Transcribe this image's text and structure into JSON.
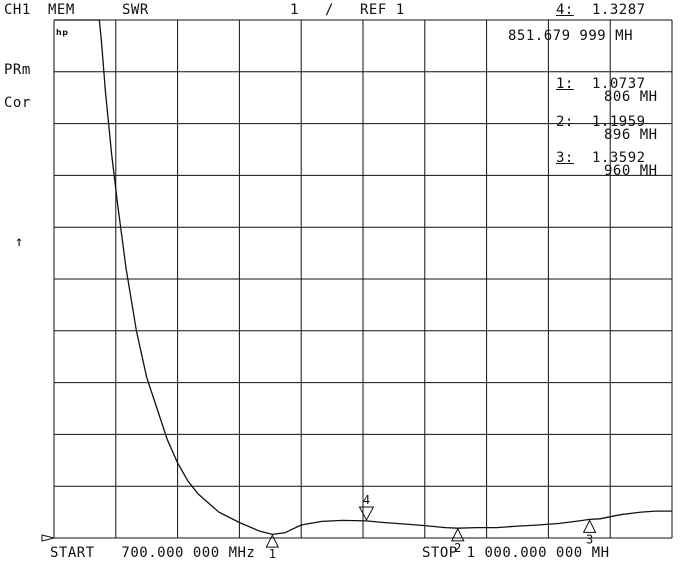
{
  "header": {
    "channel": "CH1",
    "mode": "MEM",
    "format": "SWR",
    "scale": "1",
    "slash": "/",
    "ref": "REF 1",
    "active_marker_label": "4:",
    "active_marker_value": "1.3287",
    "active_marker_freq": "851.679 999 MH"
  },
  "side": {
    "prm": "PRm",
    "cor": "Cor",
    "ref_arrow": "↑",
    "logo": "hp"
  },
  "markers": [
    {
      "label": "1:",
      "value": "1.0737",
      "freq": "806 MH"
    },
    {
      "label": "2:",
      "value": "1.1959",
      "freq": "896 MH"
    },
    {
      "label": "3:",
      "value": "1.3592",
      "freq": "960 MH"
    }
  ],
  "footer": {
    "start": "START   700.000 000 MHz",
    "stop": "STOP 1 000.000 000 MH"
  },
  "chart_data": {
    "type": "line",
    "xlim": [
      700,
      1000
    ],
    "ylim": [
      1,
      11
    ],
    "x_divisions": 10,
    "y_divisions": 10,
    "grid": true,
    "series": [
      {
        "x": [
          700,
          722,
          723,
          725,
          728,
          731,
          735,
          740,
          745,
          750,
          755,
          760,
          765,
          770,
          780,
          790,
          800,
          806,
          812,
          820,
          830,
          840,
          851.68,
          860,
          870,
          880,
          890,
          896,
          905,
          915,
          925,
          935,
          945,
          955,
          960,
          965,
          975,
          985,
          992,
          1000
        ],
        "y": [
          11,
          11,
          10.6,
          9.6,
          8.4,
          7.4,
          6.2,
          5.0,
          4.1,
          3.5,
          2.9,
          2.45,
          2.1,
          1.85,
          1.5,
          1.3,
          1.13,
          1.07,
          1.1,
          1.25,
          1.32,
          1.34,
          1.33,
          1.3,
          1.27,
          1.24,
          1.2,
          1.19,
          1.2,
          1.2,
          1.23,
          1.25,
          1.28,
          1.33,
          1.36,
          1.37,
          1.45,
          1.5,
          1.52,
          1.52
        ]
      }
    ],
    "marker_points": [
      {
        "id": "1",
        "x": 806,
        "y": 1.0737
      },
      {
        "id": "2",
        "x": 896,
        "y": 1.1959
      },
      {
        "id": "3",
        "x": 960,
        "y": 1.3592
      },
      {
        "id": "4",
        "x": 851.68,
        "y": 1.3287
      }
    ]
  }
}
